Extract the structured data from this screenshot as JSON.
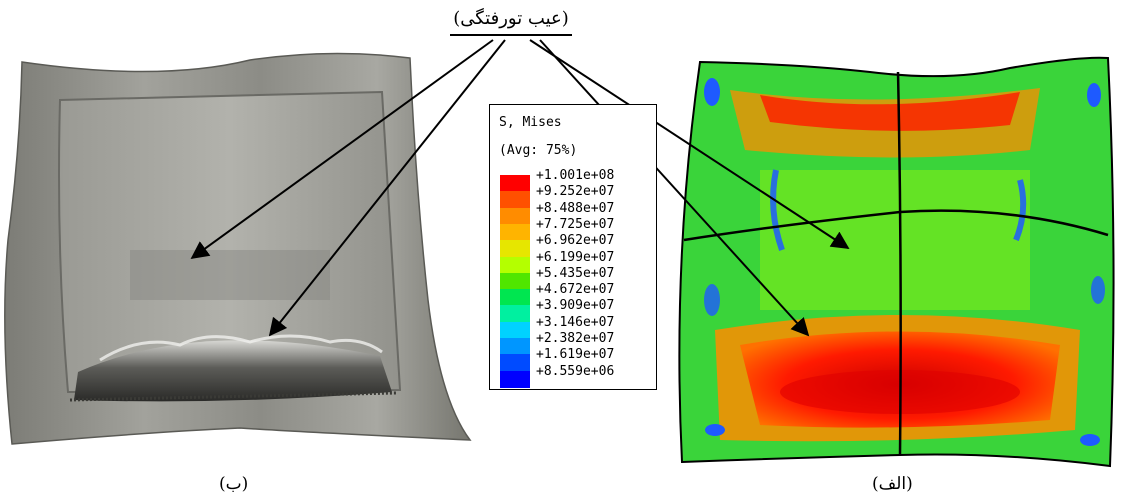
{
  "callout_label": "(عیب تورفتگی)",
  "caption_left": "(ب)",
  "caption_right": "(الف)",
  "legend": {
    "title_line1": "S, Mises",
    "title_line2": "(Avg: 75%)",
    "labels": [
      "+1.001e+08",
      "+9.252e+07",
      "+8.488e+07",
      "+7.725e+07",
      "+6.962e+07",
      "+6.199e+07",
      "+5.435e+07",
      "+4.672e+07",
      "+3.909e+07",
      "+3.146e+07",
      "+2.382e+07",
      "+1.619e+07",
      "+8.559e+06"
    ],
    "colors": [
      "#ff0000",
      "#ff5000",
      "#ff8c00",
      "#ffb400",
      "#e6e600",
      "#b4ff00",
      "#50e600",
      "#00e650",
      "#00f0a0",
      "#00d2ff",
      "#0096ff",
      "#004bff",
      "#0000ff"
    ]
  },
  "colors": {
    "sim_green": "#3ad43a",
    "sim_red": "#ff1a00",
    "sim_orange": "#ff8c00",
    "sim_blue": "#1e5aff",
    "sheet_metal": "#8c8c86",
    "arrow": "#000000"
  }
}
